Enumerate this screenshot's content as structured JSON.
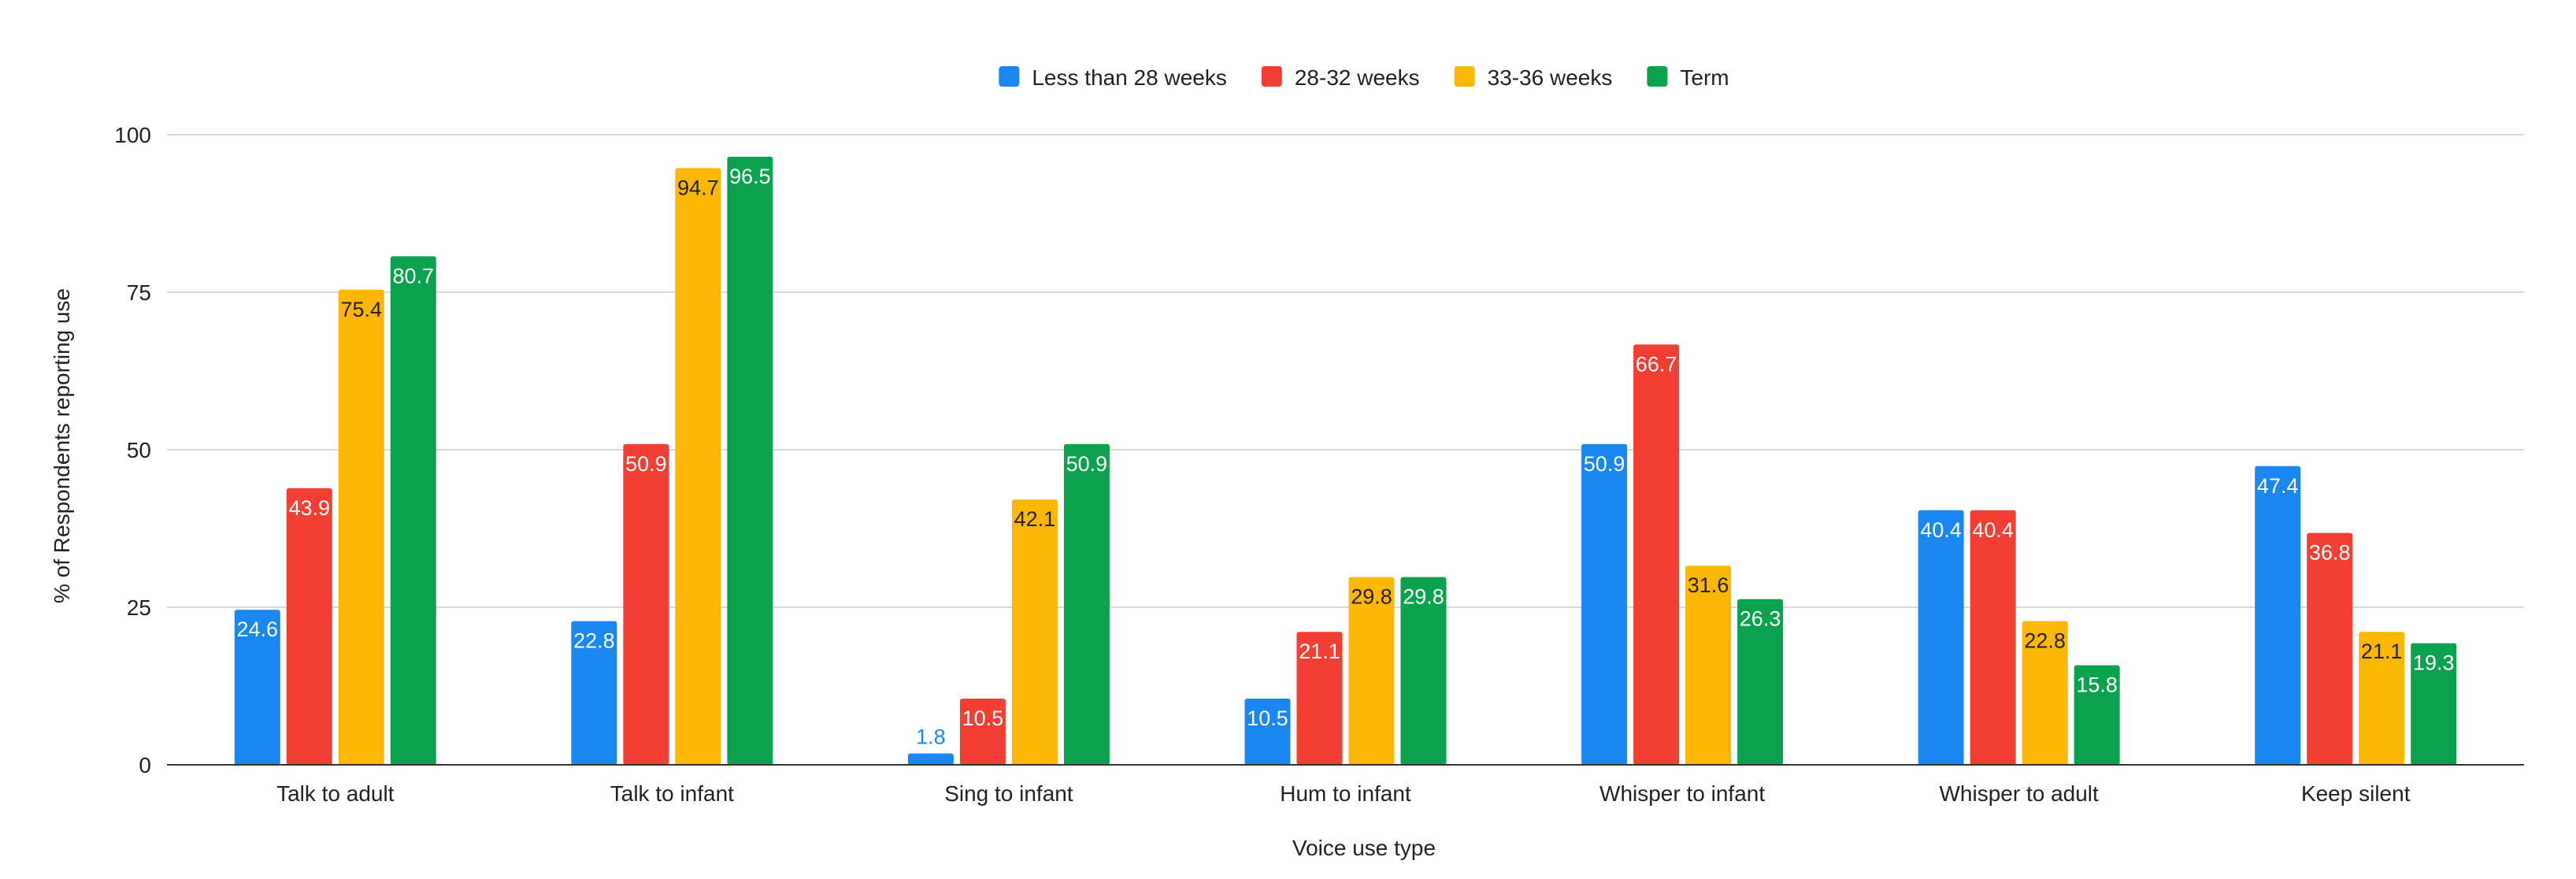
{
  "chart_data": {
    "type": "bar",
    "title": "",
    "xlabel": "Voice use type",
    "ylabel": "% of Respondents reporting use",
    "ylim": [
      0,
      100
    ],
    "yticks": [
      "0",
      "25",
      "50",
      "75",
      "100"
    ],
    "grid": true,
    "legend_position": "top-center",
    "categories": [
      "Talk to adult",
      "Talk to infant",
      "Sing to infant",
      "Hum to infant",
      "Whisper to infant",
      "Whisper to adult",
      "Keep silent"
    ],
    "series": [
      {
        "name": "Less than 28 weeks",
        "color": "#1a86f0",
        "label_color": "#ffffff",
        "values": [
          24.6,
          22.8,
          1.8,
          10.5,
          50.9,
          40.4,
          47.4
        ],
        "labels": [
          "24.6",
          "22.8",
          "1.8",
          "10.5",
          "50.9",
          "40.4",
          "47.4"
        ]
      },
      {
        "name": "28-32 weeks",
        "color": "#f33e33",
        "label_color": "#ffffff",
        "values": [
          43.9,
          50.9,
          10.5,
          21.1,
          66.7,
          40.4,
          36.8
        ],
        "labels": [
          "43.9",
          "50.9",
          "10.5",
          "21.1",
          "66.7",
          "40.4",
          "36.8"
        ]
      },
      {
        "name": "33-36 weeks",
        "color": "#fbb706",
        "label_color": "#222222",
        "values": [
          75.4,
          94.7,
          42.1,
          29.8,
          31.6,
          22.8,
          21.1
        ],
        "labels": [
          "75.4",
          "94.7",
          "42.1",
          "29.8",
          "31.6",
          "22.8",
          "21.1"
        ]
      },
      {
        "name": "Term",
        "color": "#0aa24c",
        "label_color": "#ffffff",
        "values": [
          80.7,
          96.5,
          50.9,
          29.8,
          26.3,
          15.8,
          19.3
        ],
        "labels": [
          "80.7",
          "96.5",
          "50.9",
          "29.8",
          "26.3",
          "15.8",
          "19.3"
        ]
      }
    ]
  }
}
